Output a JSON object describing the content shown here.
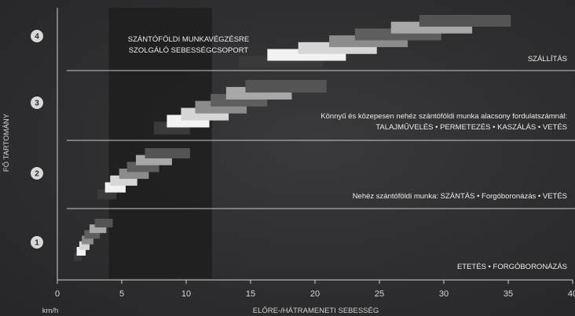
{
  "chart_data": {
    "type": "range-bar",
    "xlabel": "ELŐRE-/HÁTRAMENETI SEBESSÉG",
    "x_unit": "km/h",
    "ylabel": "FŐ TARTOMÁNY",
    "xlim": [
      0,
      40
    ],
    "x_ticks": [
      "0",
      "5",
      "10",
      "15",
      "20",
      "25",
      "30",
      "35",
      "40"
    ],
    "highlight": {
      "label_lines": [
        "SZÁNTÓFÖLDI MUNKAVÉGZÉSRE",
        "SZOLGÁLÓ SEBESSÉGCSOPORT"
      ],
      "range": [
        4,
        12
      ]
    },
    "bands": [
      {
        "number": "1",
        "annotations": [
          "ETETÉS • FORGÓBORONÁZÁS"
        ],
        "gears": [
          {
            "from": 1.3,
            "to": 1.9,
            "color": "#3a3a3a"
          },
          {
            "from": 1.5,
            "to": 2.2,
            "color": "#f2f2f2"
          },
          {
            "from": 1.7,
            "to": 2.5,
            "color": "#d6d6d6"
          },
          {
            "from": 1.9,
            "to": 2.8,
            "color": "#8c8c8c"
          },
          {
            "from": 2.1,
            "to": 3.3,
            "color": "#5e5e5e"
          },
          {
            "from": 2.5,
            "to": 3.8,
            "color": "#a8a8a8"
          },
          {
            "from": 2.9,
            "to": 4.3,
            "color": "#545454"
          }
        ]
      },
      {
        "number": "2",
        "annotations": [
          "Nehéz szántóföldi munka: SZÁNTÁS • Forgóboronázás • VETÉS"
        ],
        "gears": [
          {
            "from": 3.1,
            "to": 4.6,
            "color": "#3a3a3a"
          },
          {
            "from": 3.7,
            "to": 5.3,
            "color": "#f2f2f2"
          },
          {
            "from": 4.1,
            "to": 6.2,
            "color": "#d6d6d6"
          },
          {
            "from": 4.8,
            "to": 7.1,
            "color": "#8c8c8c"
          },
          {
            "from": 5.4,
            "to": 7.9,
            "color": "#5e5e5e"
          },
          {
            "from": 6.1,
            "to": 8.9,
            "color": "#a8a8a8"
          },
          {
            "from": 6.8,
            "to": 10.3,
            "color": "#545454"
          }
        ]
      },
      {
        "number": "3",
        "annotations": [
          "Könnyű és közepesen nehéz szántóföldi munka alacsony fordulatszámnál:",
          "TALAJMŰVELÉS • PERMETEZÉS • KASZÁLÁS • VETÉS"
        ],
        "gears": [
          {
            "from": 7.5,
            "to": 10.3,
            "color": "#3a3a3a"
          },
          {
            "from": 8.5,
            "to": 11.8,
            "color": "#f2f2f2"
          },
          {
            "from": 9.6,
            "to": 13.3,
            "color": "#d6d6d6"
          },
          {
            "from": 10.7,
            "to": 14.7,
            "color": "#8c8c8c"
          },
          {
            "from": 11.9,
            "to": 16.3,
            "color": "#5e5e5e"
          },
          {
            "from": 13.1,
            "to": 18.2,
            "color": "#a8a8a8"
          },
          {
            "from": 14.6,
            "to": 20.9,
            "color": "#545454"
          }
        ]
      },
      {
        "number": "4",
        "annotations": [
          "SZÁLLÍTÁS"
        ],
        "gears": [
          {
            "from": 14.1,
            "to": 20.6,
            "color": "#3a3a3a"
          },
          {
            "from": 16.3,
            "to": 22.4,
            "color": "#f2f2f2"
          },
          {
            "from": 18.7,
            "to": 24.8,
            "color": "#d6d6d6"
          },
          {
            "from": 21.1,
            "to": 27.2,
            "color": "#8c8c8c"
          },
          {
            "from": 23.1,
            "to": 29.8,
            "color": "#5e5e5e"
          },
          {
            "from": 25.9,
            "to": 32.2,
            "color": "#a8a8a8"
          },
          {
            "from": 28.1,
            "to": 35.2,
            "color": "#545454"
          }
        ]
      }
    ]
  }
}
